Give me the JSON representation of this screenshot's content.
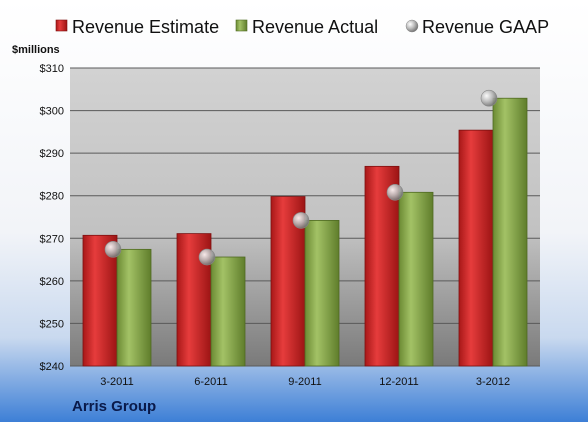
{
  "chart_data": {
    "type": "bar",
    "categories": [
      "3-2011",
      "6-2011",
      "9-2011",
      "12-2011",
      "3-2012"
    ],
    "series": [
      {
        "name": "Revenue Estimate",
        "kind": "bar",
        "color": "#d42a2a",
        "values": [
          270.7,
          271.1,
          279.8,
          286.9,
          295.4
        ]
      },
      {
        "name": "Revenue Actual",
        "kind": "bar",
        "color": "#8fad55",
        "values": [
          267.4,
          265.6,
          274.2,
          280.8,
          302.9
        ]
      },
      {
        "name": "Revenue GAAP",
        "kind": "marker",
        "color": "#b8b8b8",
        "values": [
          267.4,
          265.6,
          274.2,
          280.8,
          302.9
        ]
      }
    ],
    "ylabel": "$millions",
    "ylim": [
      240,
      310
    ],
    "yticks": [
      240,
      250,
      260,
      270,
      280,
      290,
      300,
      310
    ],
    "ytick_labels": [
      "$240",
      "$250",
      "$260",
      "$270",
      "$280",
      "$290",
      "$300",
      "$310"
    ],
    "grid": true,
    "legend_position": "top",
    "company": "Arris Group"
  }
}
